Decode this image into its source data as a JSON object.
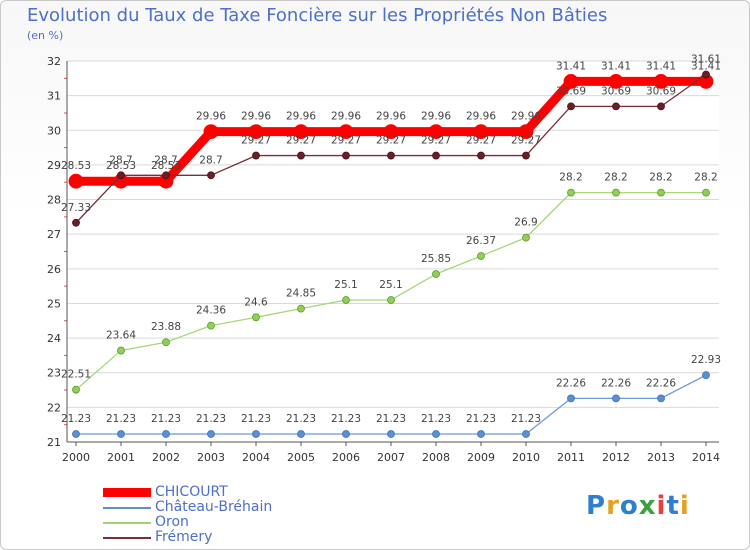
{
  "chart_data": {
    "type": "line",
    "title": "Evolution du Taux de Taxe Foncière sur les Propriétés Non Bâties",
    "ylabel": "(en %)",
    "ylim": [
      21,
      32
    ],
    "yticks": [
      "21",
      "22",
      "23",
      "24",
      "25",
      "26",
      "27",
      "28",
      "29",
      "30",
      "31",
      "32"
    ],
    "categories": [
      "2000",
      "2001",
      "2002",
      "2003",
      "2004",
      "2005",
      "2006",
      "2007",
      "2008",
      "2009",
      "2010",
      "2011",
      "2012",
      "2013",
      "2014"
    ],
    "series": [
      {
        "name": "CHICOURT",
        "color": "#ff0000",
        "values": [
          28.53,
          28.53,
          28.53,
          29.96,
          29.96,
          29.96,
          29.96,
          29.96,
          29.96,
          29.96,
          29.96,
          31.41,
          31.41,
          31.41,
          31.41
        ],
        "labels": [
          "28.53",
          "28.53",
          "28.53",
          "29.96",
          "29.96",
          "29.96",
          "29.96",
          "29.96",
          "29.96",
          "29.96",
          "29.96",
          "31.41",
          "31.41",
          "31.41",
          "31.41"
        ]
      },
      {
        "name": "Château-Bréhain",
        "color": "#5b8fd1",
        "values": [
          21.23,
          21.23,
          21.23,
          21.23,
          21.23,
          21.23,
          21.23,
          21.23,
          21.23,
          21.23,
          21.23,
          22.26,
          22.26,
          22.26,
          22.93
        ],
        "labels": [
          "21.23",
          "21.23",
          "21.23",
          "21.23",
          "21.23",
          "21.23",
          "21.23",
          "21.23",
          "21.23",
          "21.23",
          "21.23",
          "22.26",
          "22.26",
          "22.26",
          "22.93"
        ]
      },
      {
        "name": "Oron",
        "color": "#9fd46a",
        "values": [
          22.51,
          23.64,
          23.88,
          24.36,
          24.6,
          24.85,
          25.1,
          25.1,
          25.85,
          26.37,
          26.9,
          28.2,
          28.2,
          28.2,
          28.2
        ],
        "labels": [
          "22.51",
          "23.64",
          "23.88",
          "24.36",
          "24.6",
          "24.85",
          "25.1",
          "25.1",
          "25.85",
          "26.37",
          "26.9",
          "28.2",
          "28.2",
          "28.2",
          "28.2"
        ]
      },
      {
        "name": "Frémery",
        "color": "#7a2e37",
        "values": [
          27.33,
          28.7,
          28.7,
          28.7,
          29.27,
          29.27,
          29.27,
          29.27,
          29.27,
          29.27,
          29.27,
          30.69,
          30.69,
          30.69,
          31.61
        ],
        "labels": [
          "27.33",
          "28.7",
          "28.7",
          "28.7",
          "29.27",
          "29.27",
          "29.27",
          "29.27",
          "29.27",
          "29.27",
          "29.27",
          "30.69",
          "30.69",
          "30.69",
          "31.61"
        ]
      }
    ]
  },
  "logo": {
    "text": "Proxiti"
  }
}
